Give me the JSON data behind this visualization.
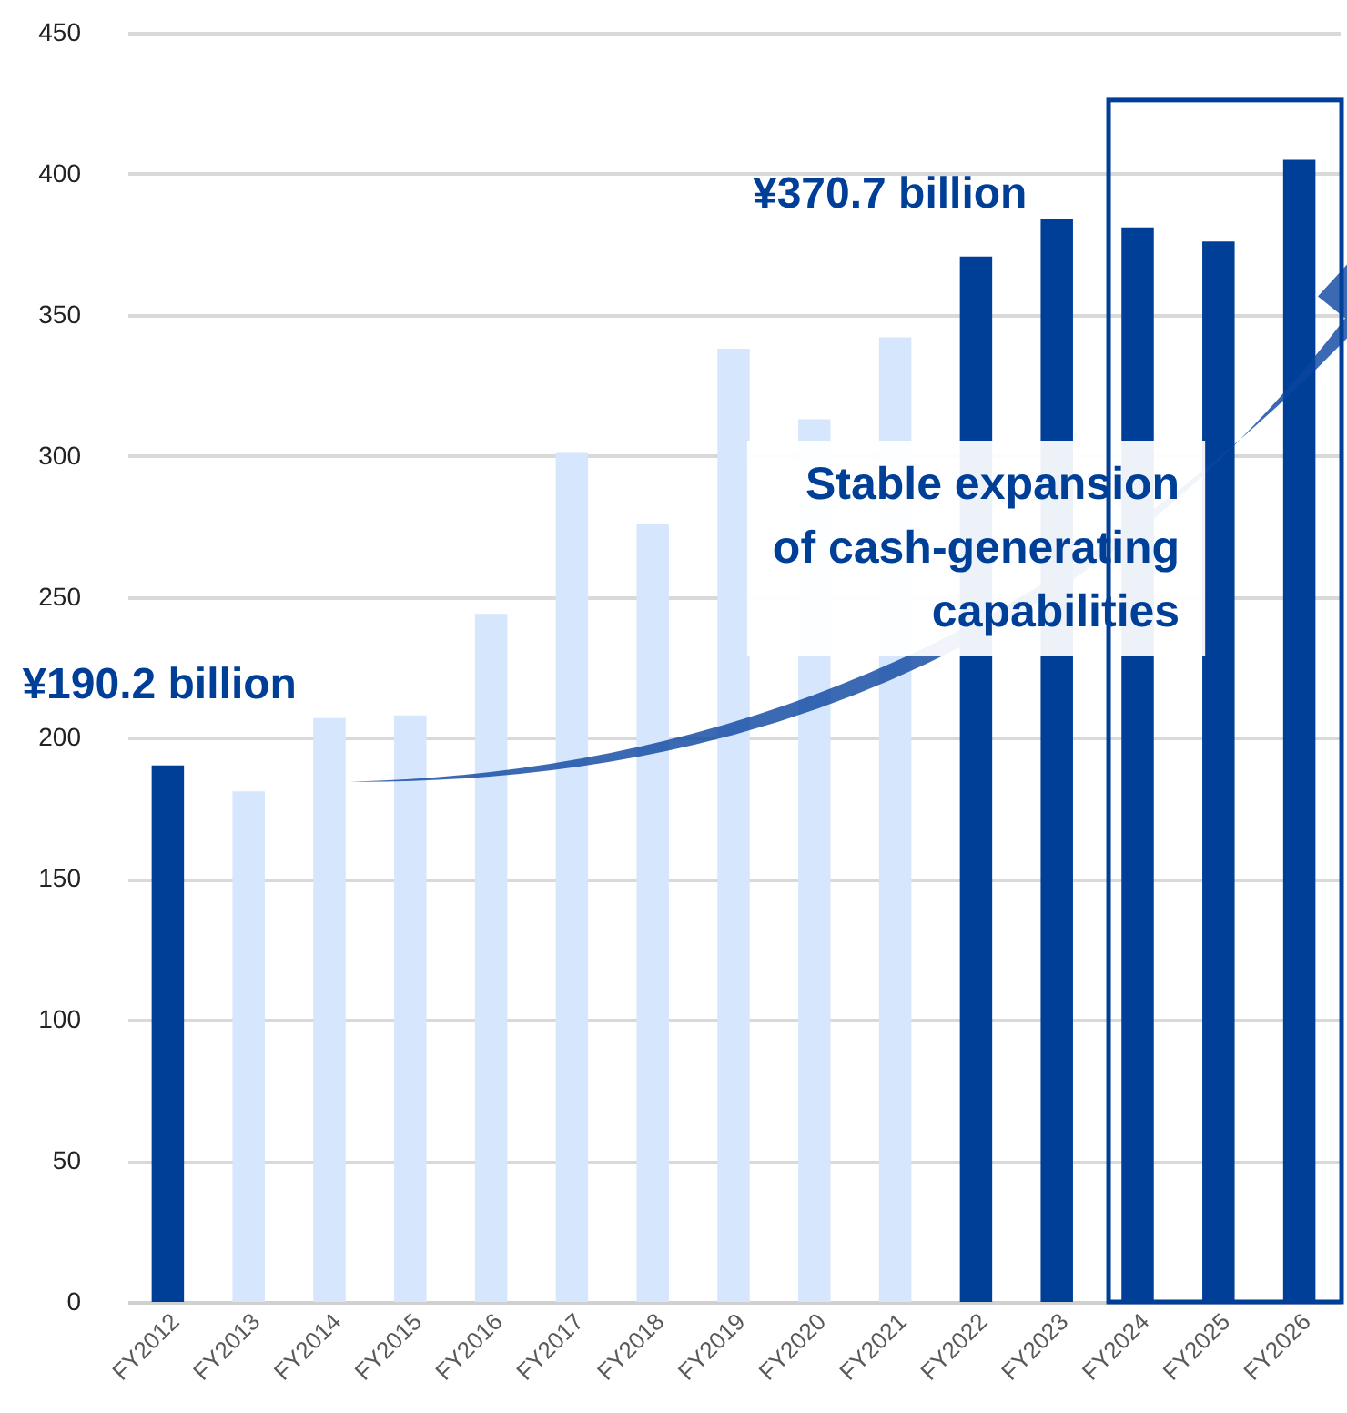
{
  "chart_data": {
    "type": "bar",
    "categories": [
      "FY2012",
      "FY2013",
      "FY2014",
      "FY2015",
      "FY2016",
      "FY2017",
      "FY2018",
      "FY2019",
      "FY2020",
      "FY2021",
      "FY2022",
      "FY2023",
      "FY2024",
      "FY2025",
      "FY2026"
    ],
    "values": [
      190.2,
      181,
      207,
      208,
      244,
      301,
      276,
      338,
      313,
      342,
      370.7,
      384,
      381,
      376,
      405
    ],
    "colors": [
      "#003f98",
      "#d6e6fc",
      "#d6e6fc",
      "#d6e6fc",
      "#d6e6fc",
      "#d6e6fc",
      "#d6e6fc",
      "#d6e6fc",
      "#d6e6fc",
      "#d6e6fc",
      "#003f98",
      "#003f98",
      "#003f98",
      "#003f98",
      "#003f98"
    ],
    "ylim": [
      0,
      450
    ],
    "yticks": [
      0,
      50,
      100,
      150,
      200,
      250,
      300,
      350,
      400,
      450
    ],
    "grid": "y",
    "annotations": [
      {
        "text": "¥190.2 billion",
        "x": "FY2012",
        "y": 190.2
      },
      {
        "text": "¥370.7 billion",
        "x": "FY2022",
        "y": 370.7
      },
      "Stable expansion of cash-generating capabilities"
    ]
  }
}
